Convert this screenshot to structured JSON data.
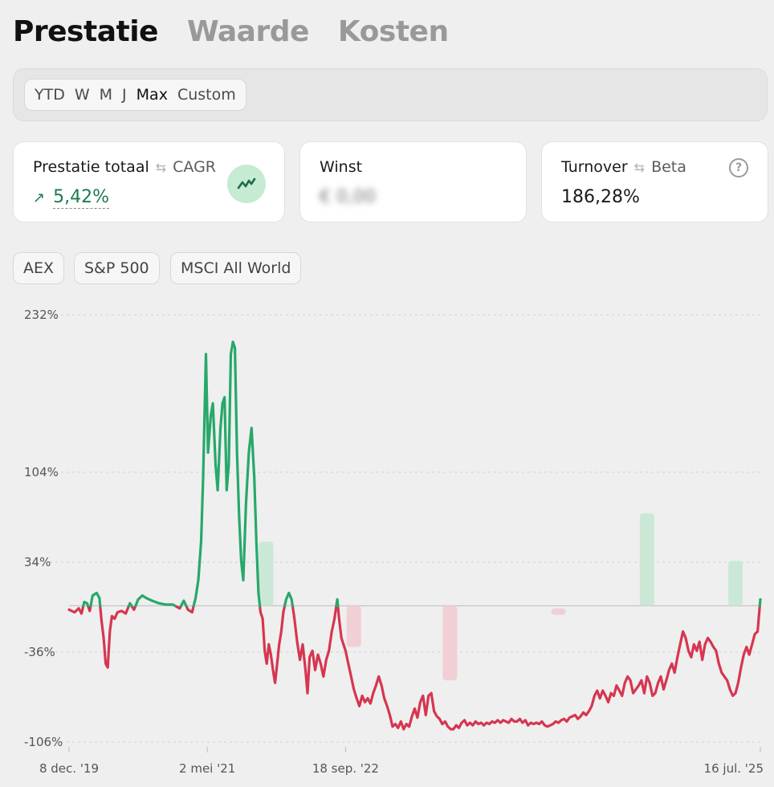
{
  "tabs": [
    {
      "label": "Prestatie",
      "active": true
    },
    {
      "label": "Waarde",
      "active": false
    },
    {
      "label": "Kosten",
      "active": false
    }
  ],
  "period_options": [
    "YTD",
    "W",
    "M",
    "J",
    "Max",
    "Custom"
  ],
  "period_selected": "Max",
  "cards": {
    "performance": {
      "title": "Prestatie totaal",
      "alt": "CAGR",
      "value": "5,42%"
    },
    "profit": {
      "title": "Winst",
      "value": "€ 0,00"
    },
    "turnover": {
      "title": "Turnover",
      "alt": "Beta",
      "value": "186,28%",
      "help": "?"
    }
  },
  "benchmarks": [
    "AEX",
    "S&P 500",
    "MSCI All World"
  ],
  "colors": {
    "positive": "#27a86a",
    "negative": "#d63650",
    "positive_bar": "#cbe8d7",
    "negative_bar": "#f0cfd5"
  },
  "chart_data": {
    "type": "line",
    "title": "Prestatie",
    "y_ticks": [
      "232%",
      "104%",
      "34%",
      "-36%",
      "-106%"
    ],
    "y_tick_values": [
      232,
      104,
      34,
      -36,
      -106
    ],
    "x_ticks": [
      "8 dec. '19",
      "2 mei '21",
      "18 sep. '22",
      "16 jul. '25"
    ],
    "x_tick_positions": [
      0,
      0.2,
      0.4,
      1.0
    ],
    "zero_line": 0,
    "series": [
      {
        "name": "Prestatie",
        "points": [
          [
            0.0,
            -3
          ],
          [
            0.008,
            -5
          ],
          [
            0.014,
            -2
          ],
          [
            0.018,
            -6
          ],
          [
            0.022,
            3
          ],
          [
            0.026,
            2
          ],
          [
            0.03,
            -4
          ],
          [
            0.034,
            8
          ],
          [
            0.04,
            10
          ],
          [
            0.044,
            6
          ],
          [
            0.047,
            -12
          ],
          [
            0.05,
            -25
          ],
          [
            0.053,
            -45
          ],
          [
            0.056,
            -48
          ],
          [
            0.059,
            -20
          ],
          [
            0.062,
            -8
          ],
          [
            0.066,
            -10
          ],
          [
            0.07,
            -5
          ],
          [
            0.076,
            -4
          ],
          [
            0.082,
            -6
          ],
          [
            0.088,
            2
          ],
          [
            0.094,
            -3
          ],
          [
            0.1,
            5
          ],
          [
            0.106,
            8
          ],
          [
            0.112,
            6
          ],
          [
            0.12,
            4
          ],
          [
            0.13,
            2
          ],
          [
            0.14,
            1
          ],
          [
            0.15,
            1
          ],
          [
            0.16,
            -2
          ],
          [
            0.166,
            4
          ],
          [
            0.172,
            -3
          ],
          [
            0.178,
            -5
          ],
          [
            0.183,
            6
          ],
          [
            0.187,
            20
          ],
          [
            0.191,
            50
          ],
          [
            0.194,
            100
          ],
          [
            0.198,
            200
          ],
          [
            0.201,
            120
          ],
          [
            0.205,
            150
          ],
          [
            0.208,
            160
          ],
          [
            0.212,
            110
          ],
          [
            0.215,
            90
          ],
          [
            0.219,
            140
          ],
          [
            0.222,
            160
          ],
          [
            0.225,
            165
          ],
          [
            0.228,
            90
          ],
          [
            0.231,
            110
          ],
          [
            0.234,
            200
          ],
          [
            0.237,
            210
          ],
          [
            0.24,
            205
          ],
          [
            0.243,
            120
          ],
          [
            0.246,
            70
          ],
          [
            0.249,
            35
          ],
          [
            0.252,
            20
          ],
          [
            0.256,
            80
          ],
          [
            0.26,
            120
          ],
          [
            0.264,
            140
          ],
          [
            0.268,
            100
          ],
          [
            0.271,
            50
          ],
          [
            0.274,
            10
          ],
          [
            0.277,
            -5
          ],
          [
            0.28,
            -10
          ],
          [
            0.283,
            -35
          ],
          [
            0.286,
            -45
          ],
          [
            0.289,
            -30
          ],
          [
            0.292,
            -38
          ],
          [
            0.295,
            -50
          ],
          [
            0.298,
            -60
          ],
          [
            0.301,
            -45
          ],
          [
            0.304,
            -30
          ],
          [
            0.307,
            -20
          ],
          [
            0.31,
            -5
          ],
          [
            0.314,
            5
          ],
          [
            0.318,
            10
          ],
          [
            0.322,
            5
          ],
          [
            0.326,
            -10
          ],
          [
            0.33,
            -28
          ],
          [
            0.334,
            -42
          ],
          [
            0.338,
            -30
          ],
          [
            0.342,
            -50
          ],
          [
            0.345,
            -68
          ],
          [
            0.348,
            -40
          ],
          [
            0.352,
            -35
          ],
          [
            0.356,
            -50
          ],
          [
            0.36,
            -38
          ],
          [
            0.364,
            -45
          ],
          [
            0.368,
            -55
          ],
          [
            0.372,
            -42
          ],
          [
            0.376,
            -35
          ],
          [
            0.38,
            -20
          ],
          [
            0.384,
            -10
          ],
          [
            0.388,
            5
          ],
          [
            0.391,
            -12
          ],
          [
            0.394,
            -25
          ],
          [
            0.397,
            -30
          ],
          [
            0.4,
            -35
          ],
          [
            0.404,
            -45
          ],
          [
            0.408,
            -55
          ],
          [
            0.412,
            -65
          ],
          [
            0.416,
            -72
          ],
          [
            0.42,
            -78
          ],
          [
            0.424,
            -70
          ],
          [
            0.428,
            -75
          ],
          [
            0.432,
            -72
          ],
          [
            0.436,
            -76
          ],
          [
            0.44,
            -68
          ],
          [
            0.444,
            -62
          ],
          [
            0.448,
            -55
          ],
          [
            0.452,
            -62
          ],
          [
            0.456,
            -72
          ],
          [
            0.46,
            -78
          ],
          [
            0.464,
            -85
          ],
          [
            0.468,
            -94
          ],
          [
            0.472,
            -92
          ],
          [
            0.476,
            -95
          ],
          [
            0.48,
            -90
          ],
          [
            0.484,
            -96
          ],
          [
            0.488,
            -92
          ],
          [
            0.492,
            -94
          ],
          [
            0.496,
            -86
          ],
          [
            0.5,
            -80
          ],
          [
            0.504,
            -87
          ],
          [
            0.508,
            -75
          ],
          [
            0.512,
            -70
          ],
          [
            0.516,
            -85
          ],
          [
            0.52,
            -70
          ],
          [
            0.524,
            -68
          ],
          [
            0.528,
            -82
          ],
          [
            0.532,
            -86
          ],
          [
            0.536,
            -88
          ],
          [
            0.54,
            -92
          ],
          [
            0.544,
            -90
          ],
          [
            0.548,
            -94
          ],
          [
            0.552,
            -96
          ],
          [
            0.556,
            -96
          ],
          [
            0.56,
            -93
          ],
          [
            0.564,
            -95
          ],
          [
            0.568,
            -91
          ],
          [
            0.572,
            -89
          ],
          [
            0.576,
            -93
          ],
          [
            0.58,
            -91
          ],
          [
            0.584,
            -93
          ],
          [
            0.588,
            -90
          ],
          [
            0.592,
            -92
          ],
          [
            0.596,
            -91
          ],
          [
            0.6,
            -93
          ],
          [
            0.604,
            -91
          ],
          [
            0.608,
            -92
          ],
          [
            0.612,
            -90
          ],
          [
            0.616,
            -91
          ],
          [
            0.62,
            -89
          ],
          [
            0.624,
            -91
          ],
          [
            0.628,
            -89
          ],
          [
            0.632,
            -90
          ],
          [
            0.636,
            -91
          ],
          [
            0.64,
            -88
          ],
          [
            0.644,
            -90
          ],
          [
            0.648,
            -90
          ],
          [
            0.652,
            -88
          ],
          [
            0.656,
            -91
          ],
          [
            0.66,
            -89
          ],
          [
            0.664,
            -93
          ],
          [
            0.668,
            -91
          ],
          [
            0.672,
            -92
          ],
          [
            0.676,
            -91
          ],
          [
            0.68,
            -92
          ],
          [
            0.684,
            -90
          ],
          [
            0.688,
            -93
          ],
          [
            0.692,
            -94
          ],
          [
            0.696,
            -93
          ],
          [
            0.7,
            -92
          ],
          [
            0.704,
            -90
          ],
          [
            0.708,
            -91
          ],
          [
            0.712,
            -89
          ],
          [
            0.716,
            -88
          ],
          [
            0.72,
            -90
          ],
          [
            0.724,
            -87
          ],
          [
            0.728,
            -86
          ],
          [
            0.732,
            -85
          ],
          [
            0.736,
            -88
          ],
          [
            0.74,
            -86
          ],
          [
            0.744,
            -83
          ],
          [
            0.748,
            -85
          ],
          [
            0.752,
            -82
          ],
          [
            0.756,
            -78
          ],
          [
            0.76,
            -70
          ],
          [
            0.764,
            -66
          ],
          [
            0.768,
            -72
          ],
          [
            0.772,
            -66
          ],
          [
            0.776,
            -70
          ],
          [
            0.78,
            -75
          ],
          [
            0.784,
            -68
          ],
          [
            0.788,
            -70
          ],
          [
            0.792,
            -62
          ],
          [
            0.796,
            -66
          ],
          [
            0.8,
            -70
          ],
          [
            0.804,
            -60
          ],
          [
            0.808,
            -55
          ],
          [
            0.812,
            -58
          ],
          [
            0.816,
            -68
          ],
          [
            0.82,
            -65
          ],
          [
            0.824,
            -62
          ],
          [
            0.828,
            -58
          ],
          [
            0.832,
            -68
          ],
          [
            0.836,
            -55
          ],
          [
            0.84,
            -60
          ],
          [
            0.844,
            -70
          ],
          [
            0.848,
            -68
          ],
          [
            0.852,
            -60
          ],
          [
            0.856,
            -55
          ],
          [
            0.86,
            -65
          ],
          [
            0.864,
            -58
          ],
          [
            0.868,
            -50
          ],
          [
            0.872,
            -45
          ],
          [
            0.876,
            -52
          ],
          [
            0.88,
            -40
          ],
          [
            0.884,
            -30
          ],
          [
            0.888,
            -20
          ],
          [
            0.892,
            -25
          ],
          [
            0.896,
            -35
          ],
          [
            0.9,
            -40
          ],
          [
            0.904,
            -30
          ],
          [
            0.908,
            -35
          ],
          [
            0.912,
            -28
          ],
          [
            0.916,
            -42
          ],
          [
            0.92,
            -30
          ],
          [
            0.924,
            -25
          ],
          [
            0.928,
            -28
          ],
          [
            0.932,
            -32
          ],
          [
            0.936,
            -35
          ],
          [
            0.94,
            -45
          ],
          [
            0.944,
            -52
          ],
          [
            0.948,
            -55
          ],
          [
            0.952,
            -58
          ],
          [
            0.956,
            -65
          ],
          [
            0.96,
            -70
          ],
          [
            0.964,
            -68
          ],
          [
            0.968,
            -60
          ],
          [
            0.972,
            -48
          ],
          [
            0.976,
            -38
          ],
          [
            0.98,
            -32
          ],
          [
            0.984,
            -38
          ],
          [
            0.988,
            -30
          ],
          [
            0.992,
            -22
          ],
          [
            0.996,
            -20
          ],
          [
            1.0,
            5
          ]
        ]
      }
    ],
    "period_bars": [
      {
        "x": 0.285,
        "from": 0,
        "to": 50,
        "sign": "positive"
      },
      {
        "x": 0.412,
        "from": 0,
        "to": -32,
        "sign": "negative"
      },
      {
        "x": 0.551,
        "from": 0,
        "to": -58,
        "sign": "negative"
      },
      {
        "x": 0.708,
        "from": -2,
        "to": -6,
        "sign": "negative"
      },
      {
        "x": 0.836,
        "from": 0,
        "to": 72,
        "sign": "positive"
      },
      {
        "x": 0.964,
        "from": 0,
        "to": 35,
        "sign": "positive"
      }
    ]
  }
}
